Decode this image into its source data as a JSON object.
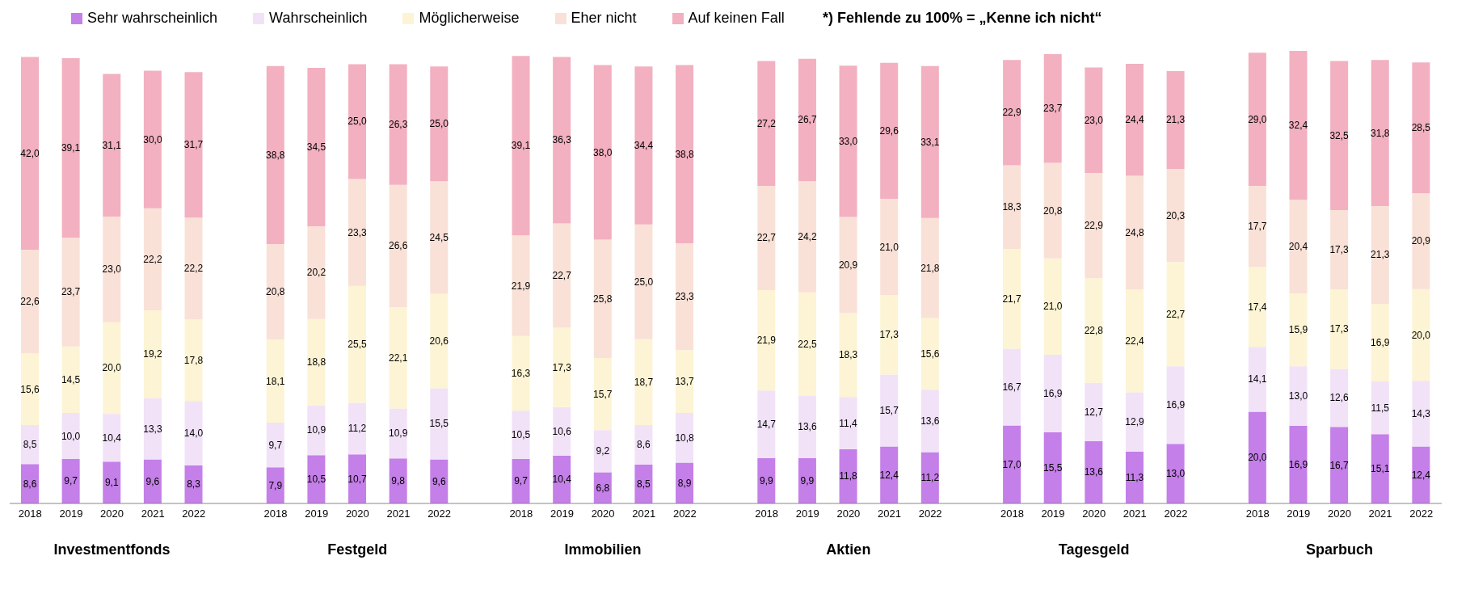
{
  "chart_data": {
    "type": "bar",
    "stacked": true,
    "legend": "top",
    "grid": false,
    "categories": [
      "2018",
      "2019",
      "2020",
      "2021",
      "2022",
      null,
      "2018",
      "2019",
      "2020",
      "2021",
      "2022",
      null,
      "2018",
      "2019",
      "2020",
      "2021",
      "2022",
      null,
      "2018",
      "2019",
      "2020",
      "2021",
      "2022",
      null,
      "2018",
      "2019",
      "2020",
      "2021",
      "2022",
      null,
      "2018",
      "2019",
      "2020",
      "2021",
      "2022"
    ],
    "series": [
      {
        "name": "Sehr wahrscheinlich",
        "color": "#c47fe8",
        "values": [
          8.6,
          9.7,
          9.1,
          9.6,
          8.3,
          null,
          7.9,
          10.5,
          10.7,
          9.8,
          9.6,
          null,
          9.7,
          10.4,
          6.8,
          8.5,
          8.9,
          null,
          9.9,
          9.9,
          11.8,
          12.4,
          11.2,
          null,
          17.0,
          15.5,
          13.6,
          11.3,
          13.0,
          null,
          20.0,
          16.9,
          16.7,
          15.1,
          12.4
        ],
        "value_labels": [
          "8,6",
          "9,7",
          "9,1",
          "9,6",
          "8,3",
          null,
          "7,9",
          "10,5",
          "10,7",
          "9,8",
          "9,6",
          null,
          "9,7",
          "10,4",
          "6,8",
          "8,5",
          "8,9",
          null,
          "9,9",
          "9,9",
          "11,8",
          "12,4",
          "11,2",
          null,
          "17,0",
          "15,5",
          "13,6",
          "11,3",
          "13,0",
          null,
          "20,0",
          "16,9",
          "16,7",
          "15,1",
          "12,4"
        ]
      },
      {
        "name": "Wahrscheinlich",
        "color": "#f1e2f8",
        "values": [
          8.5,
          10.0,
          10.4,
          13.3,
          14.0,
          null,
          9.7,
          10.9,
          11.2,
          10.9,
          15.5,
          null,
          10.5,
          10.6,
          9.2,
          8.6,
          10.8,
          null,
          14.7,
          13.6,
          11.4,
          15.7,
          13.6,
          null,
          16.7,
          16.9,
          12.7,
          12.9,
          16.9,
          null,
          14.1,
          13.0,
          12.6,
          11.5,
          14.3
        ],
        "value_labels": [
          "8,5",
          "10,0",
          "10,4",
          "13,3",
          "14,0",
          null,
          "9,7",
          "10,9",
          "11,2",
          "10,9",
          "15,5",
          null,
          "10,5",
          "10,6",
          "9,2",
          "8,6",
          "10,8",
          null,
          "14,7",
          "13,6",
          "11,4",
          "15,7",
          "13,6",
          null,
          "16,7",
          "16,9",
          "12,7",
          "12,9",
          "16,9",
          null,
          "14,1",
          "13,0",
          "12,6",
          "11,5",
          "14,3"
        ]
      },
      {
        "name": "Möglicherweise",
        "color": "#fcf4d4",
        "values": [
          15.6,
          14.5,
          20.0,
          19.2,
          17.8,
          null,
          18.1,
          18.8,
          25.5,
          22.1,
          20.6,
          null,
          16.3,
          17.3,
          15.7,
          18.7,
          13.7,
          null,
          21.9,
          22.5,
          18.3,
          17.3,
          15.6,
          null,
          21.7,
          21.0,
          22.8,
          22.4,
          22.7,
          null,
          17.4,
          15.9,
          17.3,
          16.9,
          20.0
        ],
        "value_labels": [
          "15,6",
          "14,5",
          "20,0",
          "19,2",
          "17,8",
          null,
          "18,1",
          "18,8",
          "25,5",
          "22,1",
          "20,6",
          null,
          "16,3",
          "17,3",
          "15,7",
          "18,7",
          "13,7",
          null,
          "21,9",
          "22,5",
          "18,3",
          "17,3",
          "15,6",
          null,
          "21,7",
          "21,0",
          "22,8",
          "22,4",
          "22,7",
          null,
          "17,4",
          "15,9",
          "17,3",
          "16,9",
          "20,0"
        ]
      },
      {
        "name": "Eher nicht",
        "color": "#f9e1d7",
        "values": [
          22.6,
          23.7,
          23.0,
          22.2,
          22.2,
          null,
          20.8,
          20.2,
          23.3,
          26.6,
          24.5,
          null,
          21.9,
          22.7,
          25.8,
          25.0,
          23.3,
          null,
          22.7,
          24.2,
          20.9,
          21.0,
          21.8,
          null,
          18.3,
          20.8,
          22.9,
          24.8,
          20.3,
          null,
          17.7,
          20.4,
          17.3,
          21.3,
          20.9
        ],
        "value_labels": [
          "22,6",
          "23,7",
          "23,0",
          "22,2",
          "22,2",
          null,
          "20,8",
          "20,2",
          "23,3",
          "26,6",
          "24,5",
          null,
          "21,9",
          "22,7",
          "25,8",
          "25,0",
          "23,3",
          null,
          "22,7",
          "24,2",
          "20,9",
          "21,0",
          "21,8",
          null,
          "18,3",
          "20,8",
          "22,9",
          "24,8",
          "20,3",
          null,
          "17,7",
          "20,4",
          "17,3",
          "21,3",
          "20,9"
        ]
      },
      {
        "name": "Auf keinen Fall",
        "color": "#f2b0c0",
        "values": [
          42.0,
          39.1,
          31.1,
          30.0,
          31.7,
          null,
          38.8,
          34.5,
          25.0,
          26.3,
          25.0,
          null,
          39.1,
          36.3,
          38.0,
          34.4,
          38.8,
          null,
          27.2,
          26.7,
          33.0,
          29.6,
          33.1,
          null,
          22.9,
          23.7,
          23.0,
          24.4,
          21.3,
          null,
          29.0,
          32.4,
          32.5,
          31.8,
          28.5
        ],
        "value_labels": [
          "42,0",
          "39,1",
          "31,1",
          "30,0",
          "31,7",
          null,
          "38,8",
          "34,5",
          "25,0",
          "26,3",
          "25,0",
          null,
          "39,1",
          "36,3",
          "38,0",
          "34,4",
          "38,8",
          null,
          "27,2",
          "26,7",
          "33,0",
          "29,6",
          "33,1",
          null,
          "22,9",
          "23,7",
          "23,0",
          "24,4",
          "21,3",
          null,
          "29,0",
          "32,4",
          "32,5",
          "31,8",
          "28,5"
        ]
      }
    ],
    "annotations": [
      "Investmentfonds",
      "Festgeld",
      "Immobilien",
      "Aktien",
      "Tagesgeld",
      "Sparbuch",
      "*) Fehlende zu 100% = „Kenne ich nicht“"
    ]
  }
}
